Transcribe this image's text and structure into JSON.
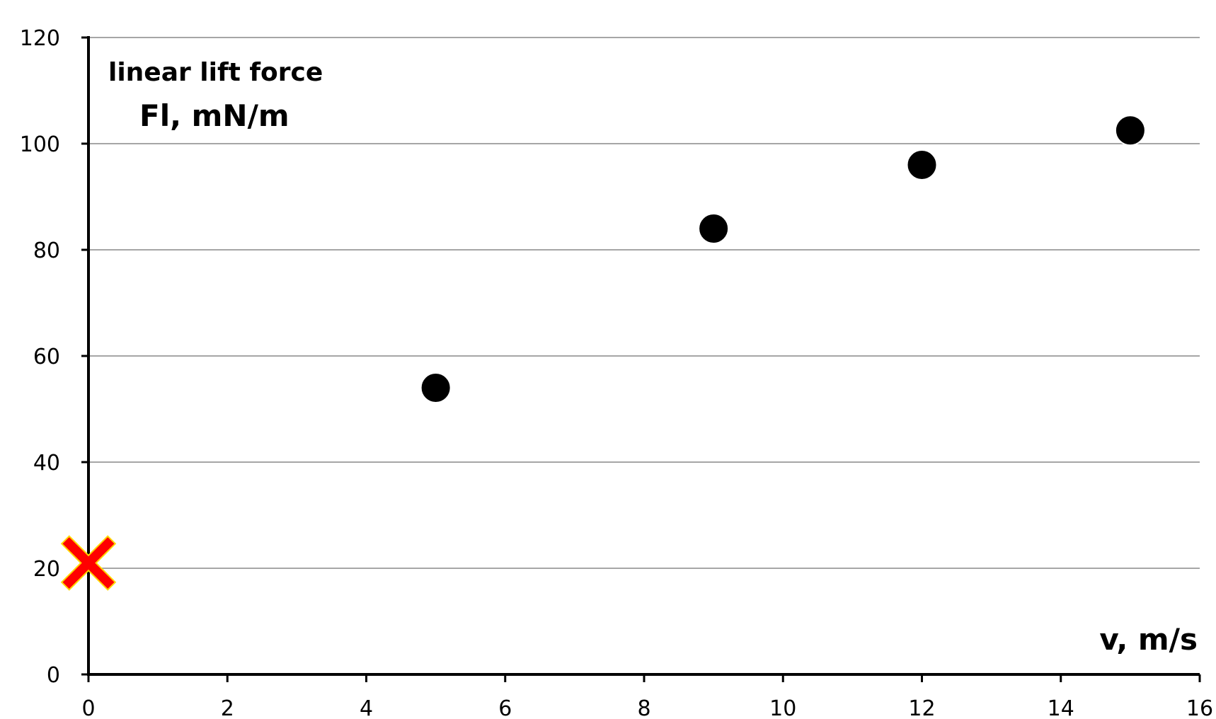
{
  "chart_data": {
    "type": "scatter",
    "title": "",
    "ylabel_line1": "linear lift force",
    "ylabel_line2": "Fl, mN/m",
    "xlabel": "v, m/s",
    "xlim": [
      0,
      16
    ],
    "ylim": [
      0,
      120
    ],
    "x_ticks": [
      0,
      2,
      4,
      6,
      8,
      10,
      12,
      14,
      16
    ],
    "y_ticks": [
      0,
      20,
      40,
      60,
      80,
      100,
      120
    ],
    "grid": "horizontal",
    "series": [
      {
        "marker": "circle",
        "color": "#000000",
        "points": [
          {
            "x": 5,
            "y": 54
          },
          {
            "x": 9,
            "y": 84
          },
          {
            "x": 12,
            "y": 96
          },
          {
            "x": 15,
            "y": 102.5
          }
        ]
      },
      {
        "marker": "cross",
        "color": "#ff0000",
        "points": [
          {
            "x": 0,
            "y": 21
          }
        ]
      }
    ],
    "colors": {
      "axis": "#000000",
      "grid": "#a6a6a6",
      "cross_outline": "#ffd700"
    }
  }
}
